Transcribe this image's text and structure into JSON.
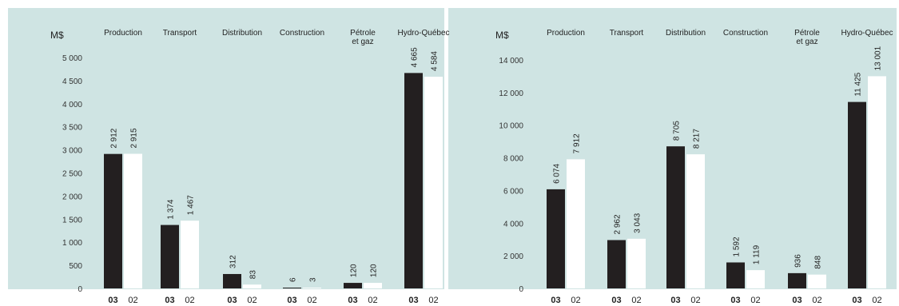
{
  "chart_data": [
    {
      "type": "bar",
      "unit_label": "M$",
      "categories": [
        "Production",
        "Transport",
        "Distribution",
        "Construction",
        "Pétrole et gaz",
        "Hydro-Québec"
      ],
      "category_lines": [
        [
          "Production"
        ],
        [
          "Transport"
        ],
        [
          "Distribution"
        ],
        [
          "Construction"
        ],
        [
          "Pétrole",
          "et gaz"
        ],
        [
          "Hydro-Québec"
        ]
      ],
      "ylim": [
        0,
        5000
      ],
      "yticks": [
        0,
        500,
        1000,
        1500,
        2000,
        2500,
        3000,
        3500,
        4000,
        4500,
        5000
      ],
      "ytick_labels": [
        "0",
        "500",
        "1 000",
        "1 500",
        "2 000",
        "2 500",
        "3 000",
        "3 500",
        "4 000",
        "4 500",
        "5 000"
      ],
      "series": [
        {
          "name": "03",
          "color": "#231f20",
          "values": [
            2912,
            1374,
            312,
            6,
            120,
            4665
          ],
          "value_labels": [
            "2 912",
            "1 374",
            "312",
            "6",
            "120",
            "4 665"
          ]
        },
        {
          "name": "02",
          "color": "#ffffff",
          "values": [
            2915,
            1467,
            83,
            3,
            120,
            4584
          ],
          "value_labels": [
            "2 915",
            "1 467",
            "83",
            "3",
            "120",
            "4 584"
          ]
        }
      ]
    },
    {
      "type": "bar",
      "unit_label": "M$",
      "categories": [
        "Production",
        "Transport",
        "Distribution",
        "Construction",
        "Pétrole et gaz",
        "Hydro-Québec"
      ],
      "category_lines": [
        [
          "Production"
        ],
        [
          "Transport"
        ],
        [
          "Distribution"
        ],
        [
          "Construction"
        ],
        [
          "Pétrole",
          "et gaz"
        ],
        [
          "Hydro-Québec"
        ]
      ],
      "ylim": [
        0,
        14000
      ],
      "yticks": [
        0,
        2000,
        4000,
        6000,
        8000,
        10000,
        12000,
        14000
      ],
      "ytick_labels": [
        "0",
        "2 000",
        "4 000",
        "6 000",
        "8 000",
        "10 000",
        "12 000",
        "14 000"
      ],
      "series": [
        {
          "name": "03",
          "color": "#231f20",
          "values": [
            6074,
            2962,
            8705,
            1592,
            936,
            11425
          ],
          "value_labels": [
            "6 074",
            "2 962",
            "8 705",
            "1 592",
            "936",
            "11 425"
          ]
        },
        {
          "name": "02",
          "color": "#ffffff",
          "values": [
            7912,
            3043,
            8217,
            1119,
            848,
            13001
          ],
          "value_labels": [
            "7 912",
            "3 043",
            "8 217",
            "1 119",
            "848",
            "13 001"
          ]
        }
      ]
    }
  ]
}
